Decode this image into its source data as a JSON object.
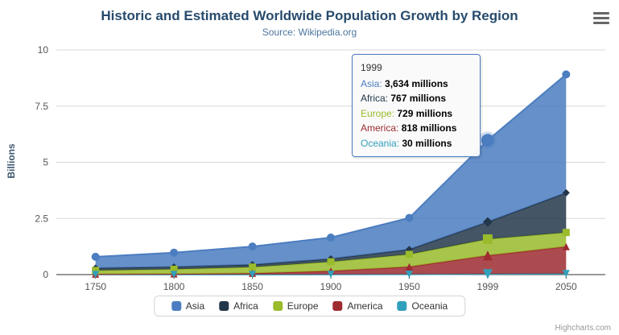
{
  "chart": {
    "title": "Historic and Estimated Worldwide Population Growth by Region",
    "subtitle": "Source: Wikipedia.org",
    "credits": "Highcharts.com"
  },
  "icons": {
    "context_menu": "hamburger"
  },
  "chart_data": {
    "type": "area",
    "stacking": "normal",
    "title": "Historic and Estimated Worldwide Population Growth by Region",
    "subtitle": "Source: Wikipedia.org",
    "xlabel": "",
    "ylabel": "Billions",
    "ylim": [
      0,
      10
    ],
    "yticks": [
      0,
      2.5,
      5,
      7.5,
      10
    ],
    "grid": true,
    "legend_position": "bottom",
    "unit": "millions",
    "categories": [
      "1750",
      "1800",
      "1850",
      "1900",
      "1950",
      "1999",
      "2050"
    ],
    "series": [
      {
        "name": "Asia",
        "color": "#4B7DC0",
        "marker": "circle",
        "values": [
          502,
          635,
          809,
          947,
          1402,
          3634,
          5268
        ]
      },
      {
        "name": "Africa",
        "color": "#23374A",
        "marker": "diamond",
        "values": [
          106,
          107,
          111,
          133,
          221,
          767,
          1766
        ]
      },
      {
        "name": "Europe",
        "color": "#99BB2C",
        "marker": "square",
        "values": [
          163,
          203,
          276,
          408,
          547,
          729,
          628
        ]
      },
      {
        "name": "America",
        "color": "#9E2B30",
        "marker": "triangle",
        "values": [
          18,
          31,
          54,
          156,
          339,
          818,
          1201
        ]
      },
      {
        "name": "Oceania",
        "color": "#31A0BC",
        "marker": "triangle-down",
        "values": [
          2,
          2,
          2,
          6,
          13,
          30,
          46
        ]
      }
    ]
  },
  "tooltip": {
    "year": "1999",
    "hover_index": 5,
    "rows": [
      {
        "name": "Asia",
        "value": "3,634 millions"
      },
      {
        "name": "Africa",
        "value": "767 millions"
      },
      {
        "name": "Europe",
        "value": "729 millions"
      },
      {
        "name": "America",
        "value": "818 millions"
      },
      {
        "name": "Oceania",
        "value": "30 millions"
      }
    ]
  }
}
